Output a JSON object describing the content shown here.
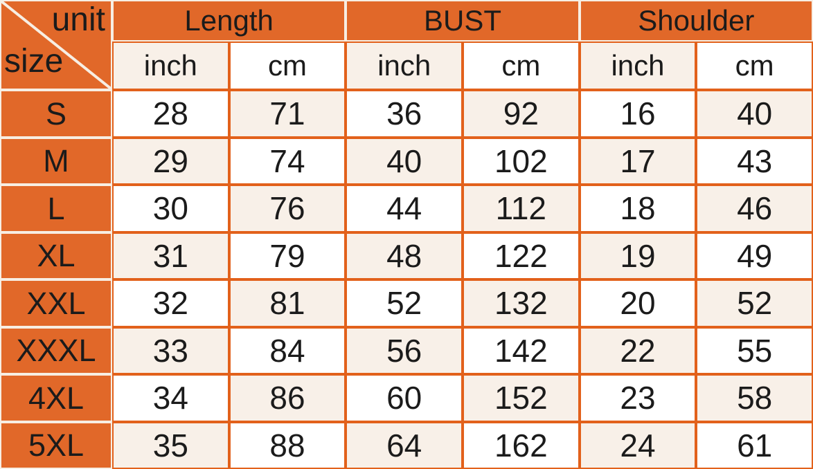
{
  "chart_data": {
    "type": "table",
    "corner": {
      "top_label": "unit",
      "bottom_label": "size"
    },
    "column_groups": [
      {
        "label": "Length",
        "sub": [
          "inch",
          "cm"
        ]
      },
      {
        "label": "BUST",
        "sub": [
          "inch",
          "cm"
        ]
      },
      {
        "label": "Shoulder",
        "sub": [
          "inch",
          "cm"
        ]
      }
    ],
    "unit_row": [
      "inch",
      "cm",
      "inch",
      "cm",
      "inch",
      "cm"
    ],
    "rows": [
      {
        "size": "S",
        "values": [
          "28",
          "71",
          "36",
          "92",
          "16",
          "40"
        ]
      },
      {
        "size": "M",
        "values": [
          "29",
          "74",
          "40",
          "102",
          "17",
          "43"
        ]
      },
      {
        "size": "L",
        "values": [
          "30",
          "76",
          "44",
          "112",
          "18",
          "46"
        ]
      },
      {
        "size": "XL",
        "values": [
          "31",
          "79",
          "48",
          "122",
          "19",
          "49"
        ]
      },
      {
        "size": "XXL",
        "values": [
          "32",
          "81",
          "52",
          "132",
          "20",
          "52"
        ]
      },
      {
        "size": "XXXL",
        "values": [
          "33",
          "84",
          "56",
          "142",
          "22",
          "55"
        ]
      },
      {
        "size": "4XL",
        "values": [
          "34",
          "86",
          "60",
          "152",
          "23",
          "58"
        ]
      },
      {
        "size": "5XL",
        "values": [
          "35",
          "88",
          "64",
          "162",
          "24",
          "61"
        ]
      }
    ],
    "layout": {
      "grid_on": true,
      "header_rows": 2,
      "data_rows": 8,
      "columns": 7
    },
    "colors": {
      "header_orange": "#e16829",
      "grid_orange": "#e2611b",
      "light_line": "#f7eee3",
      "cell_cream": "#f8f0e8",
      "cell_white": "#ffffff",
      "text": "#1b1b1b"
    }
  }
}
